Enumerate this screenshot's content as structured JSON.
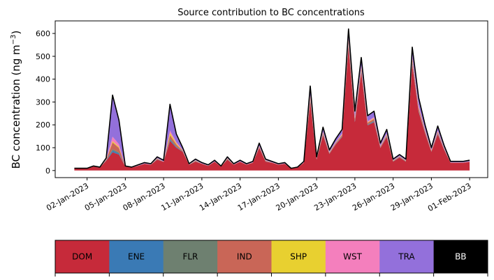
{
  "chart_data": {
    "type": "area",
    "stacked": true,
    "title": "Source contribution to BC concentrations",
    "xlabel": "",
    "ylabel": "BC concentration (ng m",
    "ylabel_sup": "−3",
    "ylabel_close": ")",
    "ylim": [
      -31,
      655
    ],
    "xlim": [
      "2022-12-30T12:00",
      "2023-02-02T10:00"
    ],
    "yticks": [
      0,
      100,
      200,
      300,
      400,
      500,
      600
    ],
    "xticks": [
      {
        "date": "2023-01-02",
        "label": "02-Jan-2023"
      },
      {
        "date": "2023-01-05",
        "label": "05-Jan-2023"
      },
      {
        "date": "2023-01-08",
        "label": "08-Jan-2023"
      },
      {
        "date": "2023-01-11",
        "label": "11-Jan-2023"
      },
      {
        "date": "2023-01-14",
        "label": "14-Jan-2023"
      },
      {
        "date": "2023-01-17",
        "label": "17-Jan-2023"
      },
      {
        "date": "2023-01-20",
        "label": "20-Jan-2023"
      },
      {
        "date": "2023-01-23",
        "label": "23-Jan-2023"
      },
      {
        "date": "2023-01-26",
        "label": "26-Jan-2023"
      },
      {
        "date": "2023-01-29",
        "label": "29-Jan-2023"
      },
      {
        "date": "2023-02-01",
        "label": "01-Feb-2023"
      }
    ],
    "grid": false,
    "legend_placement": "bottom",
    "total_line_color": "#000000",
    "x": [
      "2023-01-01T00",
      "2023-01-01T12",
      "2023-01-02T00",
      "2023-01-02T12",
      "2023-01-03T00",
      "2023-01-03T12",
      "2023-01-04T00",
      "2023-01-04T12",
      "2023-01-05T00",
      "2023-01-05T12",
      "2023-01-06T00",
      "2023-01-06T12",
      "2023-01-07T00",
      "2023-01-07T12",
      "2023-01-08T00",
      "2023-01-08T12",
      "2023-01-09T00",
      "2023-01-09T12",
      "2023-01-10T00",
      "2023-01-10T12",
      "2023-01-11T00",
      "2023-01-11T12",
      "2023-01-12T00",
      "2023-01-12T12",
      "2023-01-13T00",
      "2023-01-13T12",
      "2023-01-14T00",
      "2023-01-14T12",
      "2023-01-15T00",
      "2023-01-15T12",
      "2023-01-16T00",
      "2023-01-16T12",
      "2023-01-17T00",
      "2023-01-17T12",
      "2023-01-18T00",
      "2023-01-18T12",
      "2023-01-19T00",
      "2023-01-19T12",
      "2023-01-20T00",
      "2023-01-20T12",
      "2023-01-21T00",
      "2023-01-21T12",
      "2023-01-22T00",
      "2023-01-22T12",
      "2023-01-23T00",
      "2023-01-23T12",
      "2023-01-24T00",
      "2023-01-24T12",
      "2023-01-25T00",
      "2023-01-25T12",
      "2023-01-26T00",
      "2023-01-26T12",
      "2023-01-27T00",
      "2023-01-27T12",
      "2023-01-28T00",
      "2023-01-28T12",
      "2023-01-29T00",
      "2023-01-29T12",
      "2023-01-30T00",
      "2023-01-30T12",
      "2023-01-31T00",
      "2023-01-31T12",
      "2023-02-01T00"
    ],
    "series": [
      {
        "name": "DOM",
        "color": "#c62a3a",
        "values": [
          9,
          9,
          9,
          17,
          13,
          43,
          80,
          70,
          17,
          13,
          20,
          29,
          25,
          48,
          38,
          130,
          100,
          82,
          25,
          39,
          29,
          20,
          38,
          17,
          48,
          25,
          38,
          25,
          34,
          99,
          39,
          34,
          25,
          29,
          9,
          13,
          34,
          303,
          48,
          155,
          73,
          115,
          147,
          545,
          212,
          430,
          198,
          212,
          99,
          147,
          39,
          57,
          39,
          465,
          258,
          164,
          82,
          159,
          91,
          34,
          34,
          34,
          38
        ]
      },
      {
        "name": "ENE",
        "color": "#3a7ab5",
        "values": [
          0,
          0,
          0,
          0,
          0,
          1,
          8,
          5,
          0,
          0,
          0,
          0,
          0,
          1,
          0,
          5,
          3,
          1,
          0,
          1,
          0,
          0,
          0,
          0,
          1,
          0,
          0,
          0,
          0,
          1,
          1,
          0,
          0,
          0,
          0,
          0,
          0,
          4,
          1,
          2,
          1,
          1,
          2,
          5,
          3,
          4,
          2,
          3,
          1,
          2,
          1,
          1,
          1,
          5,
          3,
          2,
          1,
          2,
          1,
          0,
          0,
          0,
          0
        ]
      },
      {
        "name": "FLR",
        "color": "#6e8070",
        "values": [
          0,
          0,
          0,
          0,
          0,
          1,
          5,
          4,
          0,
          0,
          0,
          0,
          0,
          1,
          0,
          5,
          3,
          1,
          0,
          1,
          0,
          0,
          0,
          0,
          1,
          0,
          0,
          0,
          0,
          1,
          1,
          0,
          0,
          0,
          0,
          0,
          0,
          4,
          1,
          2,
          1,
          1,
          2,
          5,
          3,
          4,
          2,
          3,
          1,
          2,
          1,
          1,
          1,
          5,
          3,
          2,
          1,
          2,
          1,
          0,
          0,
          0,
          0
        ]
      },
      {
        "name": "IND",
        "color": "#c96657",
        "values": [
          0,
          0,
          0,
          1,
          0,
          2,
          30,
          20,
          1,
          0,
          1,
          1,
          1,
          2,
          1,
          15,
          8,
          3,
          1,
          2,
          1,
          1,
          1,
          1,
          2,
          1,
          1,
          1,
          1,
          4,
          2,
          1,
          1,
          1,
          0,
          0,
          1,
          11,
          2,
          6,
          3,
          4,
          5,
          12,
          8,
          10,
          7,
          8,
          4,
          5,
          2,
          2,
          2,
          12,
          10,
          6,
          3,
          6,
          3,
          1,
          1,
          1,
          1
        ]
      },
      {
        "name": "SHP",
        "color": "#e8d030",
        "values": [
          0,
          0,
          0,
          0,
          0,
          1,
          5,
          4,
          0,
          0,
          0,
          0,
          0,
          1,
          0,
          10,
          5,
          1,
          0,
          1,
          0,
          0,
          0,
          0,
          1,
          0,
          0,
          0,
          0,
          1,
          1,
          0,
          0,
          0,
          0,
          0,
          0,
          4,
          1,
          2,
          1,
          1,
          2,
          5,
          3,
          4,
          2,
          3,
          1,
          2,
          1,
          1,
          1,
          5,
          3,
          2,
          1,
          2,
          1,
          0,
          0,
          0,
          0
        ]
      },
      {
        "name": "WST",
        "color": "#f47fbd",
        "values": [
          0,
          0,
          0,
          0,
          0,
          1,
          20,
          12,
          0,
          0,
          1,
          1,
          1,
          1,
          1,
          10,
          5,
          2,
          1,
          1,
          1,
          1,
          1,
          0,
          1,
          1,
          1,
          1,
          1,
          2,
          1,
          1,
          1,
          1,
          0,
          0,
          1,
          7,
          1,
          4,
          2,
          3,
          4,
          8,
          5,
          8,
          5,
          5,
          2,
          4,
          1,
          1,
          1,
          8,
          8,
          4,
          2,
          4,
          2,
          1,
          1,
          1,
          1
        ]
      },
      {
        "name": "TRA",
        "color": "#9370db",
        "values": [
          1,
          1,
          1,
          2,
          2,
          6,
          182,
          105,
          2,
          2,
          3,
          4,
          3,
          6,
          5,
          115,
          36,
          10,
          3,
          5,
          4,
          3,
          5,
          2,
          6,
          3,
          5,
          3,
          4,
          12,
          5,
          4,
          3,
          4,
          1,
          2,
          4,
          37,
          6,
          19,
          9,
          14,
          18,
          40,
          26,
          35,
          24,
          26,
          12,
          18,
          5,
          7,
          5,
          40,
          35,
          20,
          10,
          20,
          11,
          4,
          4,
          4,
          5
        ]
      },
      {
        "name": "BB",
        "color": "#000000",
        "values": [
          0,
          0,
          0,
          0,
          0,
          0,
          0,
          0,
          0,
          0,
          0,
          0,
          0,
          0,
          0,
          0,
          0,
          0,
          0,
          0,
          0,
          0,
          0,
          0,
          0,
          0,
          0,
          0,
          0,
          0,
          0,
          0,
          0,
          0,
          0,
          0,
          0,
          0,
          0,
          0,
          0,
          0,
          0,
          0,
          0,
          0,
          0,
          0,
          0,
          0,
          0,
          0,
          0,
          0,
          0,
          0,
          0,
          0,
          0,
          0,
          0,
          0,
          0
        ]
      }
    ],
    "legend": [
      {
        "label": "DOM",
        "color": "#c62a3a",
        "text_color": "#000000"
      },
      {
        "label": "ENE",
        "color": "#3a7ab5",
        "text_color": "#000000"
      },
      {
        "label": "FLR",
        "color": "#6e8070",
        "text_color": "#000000"
      },
      {
        "label": "IND",
        "color": "#c96657",
        "text_color": "#000000"
      },
      {
        "label": "SHP",
        "color": "#e8d030",
        "text_color": "#000000"
      },
      {
        "label": "WST",
        "color": "#f47fbd",
        "text_color": "#000000"
      },
      {
        "label": "TRA",
        "color": "#9370db",
        "text_color": "#000000"
      },
      {
        "label": "BB",
        "color": "#000000",
        "text_color": "#ffffff"
      }
    ]
  }
}
